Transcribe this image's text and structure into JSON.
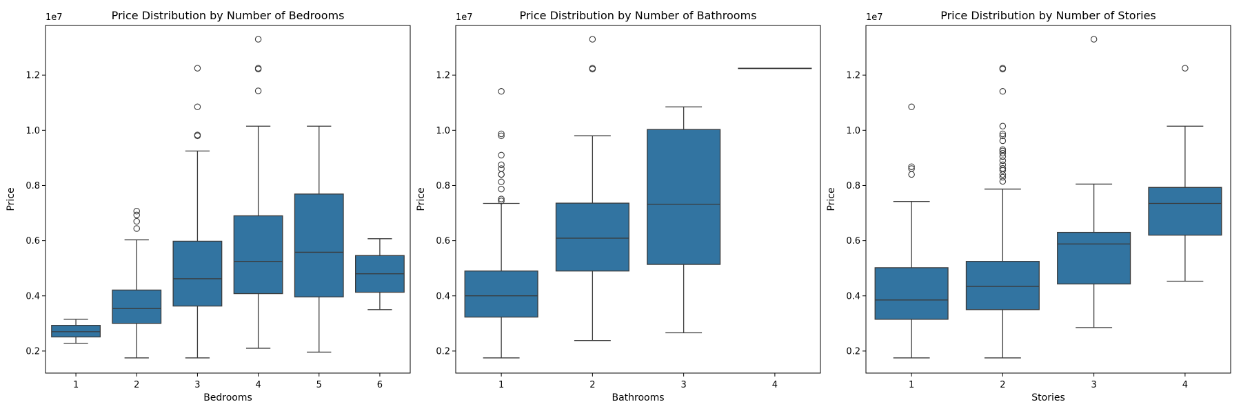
{
  "chart_data": [
    {
      "type": "box",
      "title": "Price Distribution by Number of Bedrooms",
      "xlabel": "Bedrooms",
      "ylabel": "Price",
      "offset_label": "1e7",
      "categories": [
        "1",
        "2",
        "3",
        "4",
        "5",
        "6"
      ],
      "ylim": [
        0.12,
        1.38
      ],
      "yticks": [
        0.2,
        0.4,
        0.6,
        0.8,
        1.0,
        1.2
      ],
      "yticklabels": [
        "0.2",
        "0.4",
        "0.6",
        "0.8",
        "1.0",
        "1.2"
      ],
      "color": "#3274a1",
      "boxes": [
        {
          "q1": 0.251,
          "median": 0.27,
          "q3": 0.293,
          "whisker_low": 0.228,
          "whisker_high": 0.315,
          "outliers": []
        },
        {
          "q1": 0.3,
          "median": 0.354,
          "q3": 0.421,
          "whisker_low": 0.175,
          "whisker_high": 0.603,
          "outliers": [
            0.644,
            0.67,
            0.693,
            0.707
          ]
        },
        {
          "q1": 0.363,
          "median": 0.462,
          "q3": 0.598,
          "whisker_low": 0.175,
          "whisker_high": 0.925,
          "outliers": [
            0.98,
            0.983,
            1.085,
            1.225
          ]
        },
        {
          "q1": 0.408,
          "median": 0.525,
          "q3": 0.69,
          "whisker_low": 0.21,
          "whisker_high": 1.015,
          "outliers": [
            1.143,
            1.222,
            1.225,
            1.33
          ]
        },
        {
          "q1": 0.396,
          "median": 0.558,
          "q3": 0.769,
          "whisker_low": 0.196,
          "whisker_high": 1.015,
          "outliers": []
        },
        {
          "q1": 0.413,
          "median": 0.48,
          "q3": 0.546,
          "whisker_low": 0.35,
          "whisker_high": 0.607,
          "outliers": []
        }
      ]
    },
    {
      "type": "box",
      "title": "Price Distribution by Number of Bathrooms",
      "xlabel": "Bathrooms",
      "ylabel": "Price",
      "offset_label": "1e7",
      "categories": [
        "1",
        "2",
        "3",
        "4"
      ],
      "ylim": [
        0.12,
        1.38
      ],
      "yticks": [
        0.2,
        0.4,
        0.6,
        0.8,
        1.0,
        1.2
      ],
      "yticklabels": [
        "0.2",
        "0.4",
        "0.6",
        "0.8",
        "1.0",
        "1.2"
      ],
      "color": "#3274a1",
      "boxes": [
        {
          "q1": 0.323,
          "median": 0.4,
          "q3": 0.49,
          "whisker_low": 0.175,
          "whisker_high": 0.735,
          "outliers": [
            0.744,
            0.751,
            0.787,
            0.813,
            0.84,
            0.84,
            0.861,
            0.875,
            0.91,
            0.98,
            0.987,
            1.141
          ]
        },
        {
          "q1": 0.49,
          "median": 0.609,
          "q3": 0.736,
          "whisker_low": 0.238,
          "whisker_high": 0.98,
          "outliers": [
            1.222,
            1.225,
            1.33
          ]
        },
        {
          "q1": 0.514,
          "median": 0.732,
          "q3": 1.003,
          "whisker_low": 0.266,
          "whisker_high": 1.085,
          "outliers": []
        },
        {
          "q1": 1.225,
          "median": 1.225,
          "q3": 1.225,
          "whisker_low": 1.225,
          "whisker_high": 1.225,
          "outliers": []
        }
      ]
    },
    {
      "type": "box",
      "title": "Price Distribution by Number of Stories",
      "xlabel": "Stories",
      "ylabel": "Price",
      "offset_label": "1e7",
      "categories": [
        "1",
        "2",
        "3",
        "4"
      ],
      "ylim": [
        0.12,
        1.38
      ],
      "yticks": [
        0.2,
        0.4,
        0.6,
        0.8,
        1.0,
        1.2
      ],
      "yticklabels": [
        "0.2",
        "0.4",
        "0.6",
        "0.8",
        "1.0",
        "1.2"
      ],
      "color": "#3274a1",
      "boxes": [
        {
          "q1": 0.315,
          "median": 0.385,
          "q3": 0.502,
          "whisker_low": 0.175,
          "whisker_high": 0.742,
          "outliers": [
            0.84,
            0.861,
            0.868,
            1.085
          ]
        },
        {
          "q1": 0.35,
          "median": 0.434,
          "q3": 0.525,
          "whisker_low": 0.175,
          "whisker_high": 0.787,
          "outliers": [
            0.815,
            0.83,
            0.84,
            0.855,
            0.862,
            0.875,
            0.89,
            0.905,
            0.917,
            0.925,
            0.93,
            0.962,
            0.98,
            0.987,
            1.015,
            1.141,
            1.222,
            1.225
          ]
        },
        {
          "q1": 0.443,
          "median": 0.588,
          "q3": 0.63,
          "whisker_low": 0.285,
          "whisker_high": 0.805,
          "outliers": [
            1.33
          ]
        },
        {
          "q1": 0.62,
          "median": 0.735,
          "q3": 0.793,
          "whisker_low": 0.453,
          "whisker_high": 1.015,
          "outliers": [
            1.225
          ]
        }
      ]
    }
  ]
}
